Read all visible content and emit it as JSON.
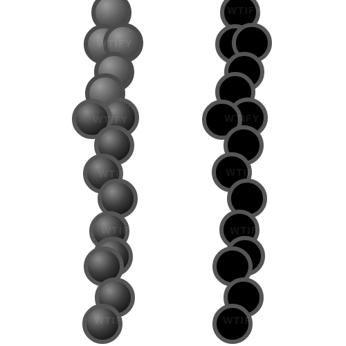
{
  "scene": {
    "subject": "two strands of round beads",
    "background_color": "#ffffff",
    "strands": [
      {
        "name": "strand-left",
        "finish": "gray gradient, faded at top",
        "bead_count": 17,
        "rim_color": "#555555",
        "highlight_color": "#888888",
        "core_color": "#000000"
      },
      {
        "name": "strand-right",
        "finish": "solid black",
        "bead_count": 17,
        "rim_color": "#555555",
        "core_color": "#000000"
      }
    ]
  },
  "watermark": {
    "text": "WTIFY",
    "color": "#ffffff"
  }
}
